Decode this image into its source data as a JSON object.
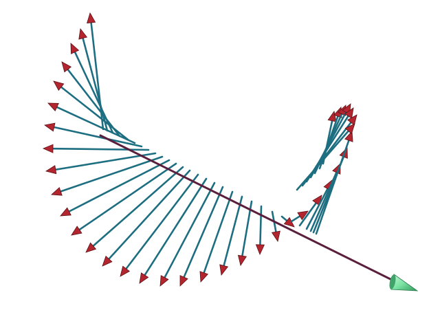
{
  "scene": {
    "description_colors": {
      "background": "#ffffff",
      "axis": "#5a1f3c",
      "vector_shaft": "#1d6e80",
      "vector_head": "#b3262f",
      "axis_tip": "#7be3a3"
    },
    "vector_count": 30
  }
}
